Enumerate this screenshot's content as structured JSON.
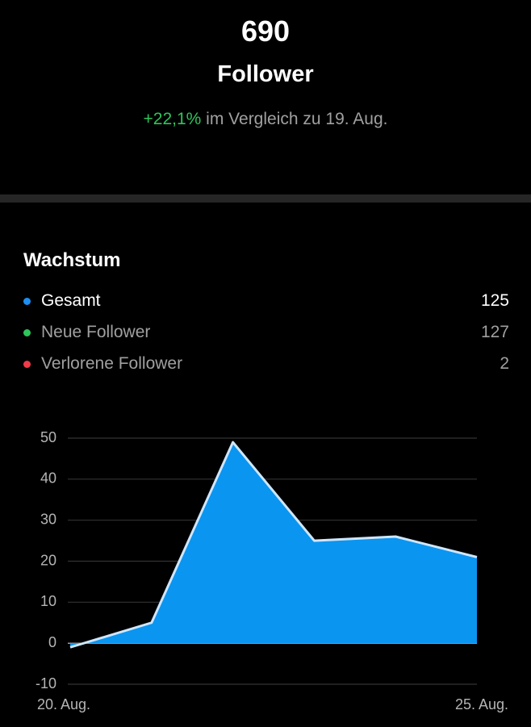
{
  "header": {
    "count": "690",
    "label": "Follower",
    "change": "+22,1%",
    "comparison": "im Vergleich zu 19. Aug."
  },
  "growth": {
    "title": "Wachstum",
    "rows": [
      {
        "label": "Gesamt",
        "value": 125,
        "color": "#1d8ff2"
      },
      {
        "label": "Neue Follower",
        "value": 127,
        "color": "#2ec55a"
      },
      {
        "label": "Verlorene Follower",
        "value": 2,
        "color": "#f0394a"
      }
    ]
  },
  "chart_data": {
    "type": "area",
    "categories": [
      "20. Aug.",
      null,
      null,
      null,
      null,
      "25. Aug."
    ],
    "values": [
      -1,
      5,
      49,
      25,
      26,
      21
    ],
    "color": "#0a95f0",
    "line_color": "#cfe6fb",
    "ylim": [
      -10,
      50
    ],
    "yticks": [
      -10,
      0,
      10,
      20,
      30,
      40,
      50
    ],
    "grid": true
  }
}
